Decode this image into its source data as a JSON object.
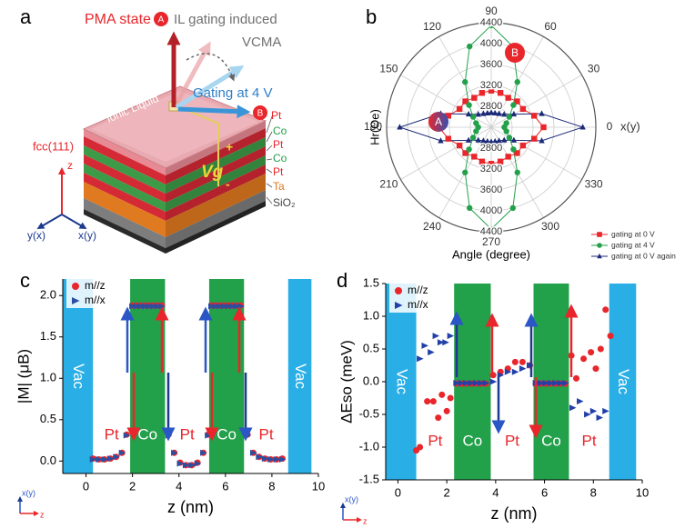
{
  "diagram": {
    "panel": "a",
    "title": "PMA state",
    "marker_a": "A",
    "gating_text": "IL gating induced",
    "vcma": "VCMA",
    "gating_voltage": "Gating at 4 V",
    "marker_b": "B",
    "liquid": "Ionic Liquid",
    "vg": "Vg",
    "plus": "+",
    "minus": "-",
    "layers": [
      "Pt",
      "Co",
      "Pt",
      "Co",
      "Pt",
      "Ta",
      "SiO₂"
    ],
    "lattice": "fcc(111)",
    "axes": [
      "z",
      "y(x)",
      "x(y)"
    ]
  },
  "chart_data": [
    {
      "panel": "b",
      "type": "polar",
      "xlabel": "Angle (degree)",
      "ylabel": "Hr(Oe)",
      "legend": "lower right",
      "rlim": [
        2400,
        4400
      ],
      "rticks": [
        2800,
        3200,
        3600,
        4000,
        4400
      ],
      "thetaticks": [
        0,
        30,
        60,
        90,
        120,
        150,
        180,
        210,
        240,
        270,
        300,
        330
      ],
      "annotations": [
        "A",
        "B",
        "x(y)"
      ],
      "theta": [
        0,
        15,
        30,
        45,
        60,
        75,
        90,
        105,
        120,
        135,
        150,
        165,
        180,
        195,
        210,
        225,
        240,
        255,
        270,
        285,
        300,
        315,
        330,
        345
      ],
      "series": [
        {
          "name": "gating at 0 V",
          "color": "#e8262b",
          "marker": "square",
          "values": [
            3400,
            3250,
            3100,
            3100,
            3050,
            3080,
            3100,
            3080,
            3050,
            3100,
            3100,
            3250,
            3400,
            3250,
            3100,
            3100,
            3050,
            3080,
            3100,
            3080,
            3050,
            3100,
            3100,
            3250
          ]
        },
        {
          "name": "gating at 4 V",
          "color": "#22a04a",
          "marker": "circle",
          "values": [
            2650,
            2700,
            2800,
            3000,
            3400,
            4000,
            4350,
            4000,
            3400,
            3000,
            2800,
            2700,
            2650,
            2700,
            2800,
            3000,
            3400,
            4000,
            4350,
            4000,
            3400,
            3000,
            2800,
            2700
          ]
        },
        {
          "name": "gating at 0  V again",
          "color": "#1c2a78",
          "marker": "triangle",
          "values": [
            4150,
            3400,
            2900,
            2750,
            2700,
            2680,
            2680,
            2680,
            2700,
            2750,
            2900,
            3400,
            4150,
            3400,
            2900,
            2750,
            2700,
            2680,
            2680,
            2680,
            2700,
            2750,
            2900,
            3400
          ]
        }
      ]
    },
    {
      "panel": "c",
      "type": "scatter",
      "xlabel": "z (nm)",
      "ylabel": "|M| (μB)",
      "legend": "upper left",
      "corner_axes": [
        "x(y)",
        "z"
      ],
      "xlim": [
        -1,
        10
      ],
      "ylim": [
        -0.15,
        2.2
      ],
      "xticks": [
        0,
        2,
        4,
        6,
        8,
        10
      ],
      "yticks": [
        {
          "value": 0,
          "label": "0.0"
        },
        0.5,
        {
          "value": 1,
          "label": "1.0"
        },
        1.5,
        {
          "value": 2,
          "label": "2.0"
        }
      ],
      "regions": [
        {
          "label": "Vac",
          "range": [
            -1,
            0.3
          ],
          "color": "#29aee6"
        },
        {
          "label": "Pt",
          "range": [
            0.3,
            1.9
          ]
        },
        {
          "label": "Co",
          "range": [
            1.9,
            3.4
          ],
          "color": "#22a04a"
        },
        {
          "label": "Pt",
          "range": [
            3.4,
            5.3
          ]
        },
        {
          "label": "Co",
          "range": [
            5.3,
            6.8
          ],
          "color": "#22a04a"
        },
        {
          "label": "Pt",
          "range": [
            6.8,
            8.7
          ]
        },
        {
          "label": "Vac",
          "range": [
            8.7,
            9.7
          ],
          "color": "#29aee6"
        }
      ],
      "series": [
        {
          "name": "m//z",
          "color": "#e8262b",
          "marker": "circle",
          "x": [
            0.3,
            0.55,
            0.8,
            1.05,
            1.3,
            1.55,
            1.75,
            2.0,
            2.18,
            2.36,
            2.54,
            2.72,
            2.9,
            3.08,
            3.26,
            3.55,
            3.8,
            4.05,
            4.3,
            4.55,
            4.8,
            5.05,
            5.25,
            5.4,
            5.58,
            5.76,
            5.94,
            6.12,
            6.3,
            6.48,
            6.66,
            6.95,
            7.2,
            7.45,
            7.7,
            7.95,
            8.2,
            8.45
          ],
          "values": [
            0.03,
            0.02,
            0.02,
            0.03,
            0.05,
            0.1,
            0.32,
            1.88,
            1.88,
            1.88,
            1.88,
            1.88,
            1.88,
            1.88,
            1.88,
            0.32,
            0.1,
            -0.02,
            -0.05,
            -0.05,
            -0.02,
            0.1,
            0.32,
            1.88,
            1.88,
            1.88,
            1.88,
            1.88,
            1.88,
            1.88,
            1.88,
            0.32,
            0.1,
            0.05,
            0.03,
            0.02,
            0.02,
            0.03
          ]
        },
        {
          "name": "m//x",
          "color": "#2b4ea0",
          "marker": "triangle",
          "x": [
            0.3,
            0.55,
            0.8,
            1.05,
            1.3,
            1.55,
            1.75,
            2.0,
            2.18,
            2.36,
            2.54,
            2.72,
            2.9,
            3.08,
            3.26,
            3.55,
            3.8,
            4.05,
            4.3,
            4.55,
            4.8,
            5.05,
            5.25,
            5.4,
            5.58,
            5.76,
            5.94,
            6.12,
            6.3,
            6.48,
            6.66,
            6.95,
            7.2,
            7.45,
            7.7,
            7.95,
            8.2,
            8.45
          ],
          "values": [
            0.02,
            0.02,
            0.02,
            0.03,
            0.05,
            0.1,
            0.31,
            1.87,
            1.87,
            1.87,
            1.87,
            1.87,
            1.87,
            1.87,
            1.87,
            0.31,
            0.1,
            -0.03,
            -0.05,
            -0.05,
            -0.03,
            0.1,
            0.31,
            1.87,
            1.87,
            1.87,
            1.87,
            1.87,
            1.87,
            1.87,
            1.87,
            0.31,
            0.1,
            0.05,
            0.03,
            0.02,
            0.02,
            0.02
          ]
        }
      ]
    },
    {
      "panel": "d",
      "type": "scatter",
      "xlabel": "z (nm)",
      "ylabel": "ΔEso (meV)",
      "legend": "upper left",
      "corner_axes": [
        "x(y)",
        "z"
      ],
      "xlim": [
        -0.5,
        10
      ],
      "ylim": [
        -1.5,
        1.5
      ],
      "xticks": [
        0,
        2,
        4,
        6,
        8,
        10
      ],
      "yticks": [
        -1.5,
        {
          "value": -1,
          "label": "-1.0"
        },
        -0.5,
        {
          "value": 0,
          "label": "0.0"
        },
        0.5,
        {
          "value": 1,
          "label": "1.0"
        },
        1.5
      ],
      "regions": [
        {
          "label": "Vac",
          "range": [
            -0.5,
            0.75
          ],
          "color": "#29aee6"
        },
        {
          "label": "Pt",
          "range": [
            0.75,
            2.3
          ]
        },
        {
          "label": "Co",
          "range": [
            2.3,
            3.8
          ],
          "color": "#22a04a"
        },
        {
          "label": "Pt",
          "range": [
            3.8,
            5.55
          ]
        },
        {
          "label": "Co",
          "range": [
            5.55,
            7.0
          ],
          "color": "#22a04a"
        },
        {
          "label": "Pt",
          "range": [
            7.0,
            8.65
          ]
        },
        {
          "label": "Vac",
          "range": [
            8.65,
            9.75
          ],
          "color": "#29aee6"
        }
      ],
      "series": [
        {
          "name": "m//z",
          "color": "#e8262b",
          "marker": "circle",
          "x": [
            0.75,
            0.9,
            1.2,
            1.45,
            1.65,
            1.8,
            2.0,
            2.15,
            2.4,
            2.6,
            2.8,
            3.0,
            3.2,
            3.4,
            3.6,
            3.9,
            4.2,
            4.5,
            4.8,
            5.1,
            5.4,
            5.65,
            5.85,
            6.05,
            6.25,
            6.45,
            6.65,
            6.85,
            7.1,
            7.3,
            7.6,
            7.9,
            8.1,
            8.3,
            8.5,
            8.7
          ],
          "values": [
            -1.05,
            -1.0,
            -0.3,
            -0.3,
            -0.55,
            -0.2,
            -0.45,
            -0.25,
            -0.03,
            -0.03,
            -0.03,
            -0.03,
            -0.03,
            -0.03,
            -0.03,
            0.1,
            0.15,
            0.2,
            0.3,
            0.3,
            0.25,
            -0.03,
            -0.03,
            -0.03,
            -0.03,
            -0.03,
            -0.03,
            -0.03,
            0.4,
            0.05,
            0.35,
            0.45,
            0.2,
            0.5,
            1.1,
            0.7
          ]
        },
        {
          "name": "m//x",
          "color": "#2140a8",
          "marker": "triangle",
          "x": [
            0.9,
            1.1,
            1.35,
            1.55,
            1.75,
            1.95,
            2.15,
            2.4,
            2.6,
            2.8,
            3.0,
            3.2,
            3.4,
            3.6,
            3.9,
            4.2,
            4.5,
            4.8,
            5.1,
            5.4,
            5.65,
            5.85,
            6.05,
            6.25,
            6.45,
            6.65,
            6.85,
            7.15,
            7.45,
            7.75,
            8.0,
            8.25,
            8.5
          ],
          "values": [
            0.35,
            0.55,
            0.45,
            0.7,
            0.6,
            0.6,
            0.7,
            -0.02,
            -0.02,
            -0.02,
            -0.02,
            -0.02,
            -0.02,
            -0.02,
            0.0,
            0.1,
            0.15,
            0.15,
            0.2,
            0.25,
            -0.02,
            -0.02,
            -0.02,
            -0.02,
            -0.02,
            -0.02,
            -0.02,
            -0.4,
            -0.3,
            -0.5,
            -0.45,
            -0.55,
            -0.45
          ]
        }
      ]
    }
  ]
}
